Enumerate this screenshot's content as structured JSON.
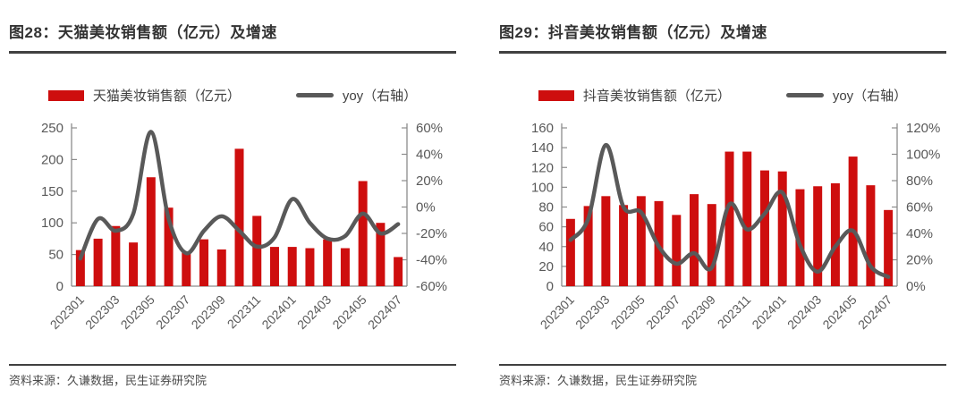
{
  "colors": {
    "bar_red": "#CE0E0E",
    "line_gray": "#595959",
    "title": "#333333",
    "rule": "#404040",
    "axis_label": "#595959",
    "axis_line": "#8C8C8C",
    "footer": "#4A4A4A"
  },
  "panels": [
    {
      "figure_title": "图28：天猫美妆销售额（亿元）及增速",
      "source": "资料来源：久谦数据，民生证券研究院"
    },
    {
      "figure_title": "图29：抖音美妆销售额（亿元）及增速",
      "source": "资料来源：久谦数据，民生证券研究院"
    }
  ],
  "chart_data": [
    {
      "type": "bar",
      "subtype": "bar+line-combo",
      "title": "图28：天猫美妆销售额（亿元）及增速",
      "categories": [
        "202301",
        "202302",
        "202303",
        "202304",
        "202305",
        "202306",
        "202307",
        "202308",
        "202309",
        "202310",
        "202311",
        "202312",
        "202401",
        "202402",
        "202403",
        "202404",
        "202405",
        "202406",
        "202407"
      ],
      "x_tick_labels": [
        "202301",
        "202303",
        "202305",
        "202307",
        "202309",
        "202311",
        "202401",
        "202403",
        "202405",
        "202407"
      ],
      "series": [
        {
          "name": "天猫美妆销售额（亿元）",
          "type": "bar",
          "axis": "left",
          "values": [
            57,
            75,
            95,
            69,
            172,
            124,
            53,
            74,
            58,
            217,
            111,
            62,
            62,
            60,
            74,
            60,
            166,
            100,
            46
          ]
        },
        {
          "name": "yoy（右轴）",
          "type": "line",
          "axis": "right",
          "values": [
            -39,
            -9,
            -18,
            -5,
            57,
            -9,
            -35,
            -18,
            -7,
            -18,
            -30,
            -23,
            6,
            -12,
            -24,
            -22,
            -5,
            -20,
            -13
          ]
        }
      ],
      "left_axis": {
        "min": 0,
        "max": 250,
        "step": 50,
        "tick_labels": [
          "0",
          "50",
          "100",
          "150",
          "200",
          "250"
        ]
      },
      "right_axis": {
        "min": -60,
        "max": 60,
        "step": 20,
        "tick_labels": [
          "-60%",
          "-40%",
          "-20%",
          "0%",
          "20%",
          "40%",
          "60%"
        ]
      },
      "legend_position": "top",
      "grid": false
    },
    {
      "type": "bar",
      "subtype": "bar+line-combo",
      "title": "图29：抖音美妆销售额（亿元）及增速",
      "categories": [
        "202301",
        "202302",
        "202303",
        "202304",
        "202305",
        "202306",
        "202307",
        "202308",
        "202309",
        "202310",
        "202311",
        "202312",
        "202401",
        "202402",
        "202403",
        "202404",
        "202405",
        "202406",
        "202407"
      ],
      "x_tick_labels": [
        "202301",
        "202303",
        "202305",
        "202307",
        "202309",
        "202311",
        "202401",
        "202403",
        "202405",
        "202407"
      ],
      "series": [
        {
          "name": "抖音美妆销售额（亿元）",
          "type": "bar",
          "axis": "left",
          "values": [
            68,
            81,
            91,
            82,
            91,
            86,
            72,
            93,
            83,
            136,
            136,
            117,
            116,
            98,
            101,
            104,
            131,
            102,
            77
          ]
        },
        {
          "name": "yoy（右轴）",
          "type": "line",
          "axis": "right",
          "values": [
            35,
            51,
            107,
            60,
            56,
            30,
            17,
            25,
            14,
            62,
            43,
            55,
            71,
            31,
            11,
            30,
            42,
            15,
            7
          ]
        }
      ],
      "left_axis": {
        "min": 0,
        "max": 160,
        "step": 20,
        "tick_labels": [
          "0",
          "20",
          "40",
          "60",
          "80",
          "100",
          "120",
          "140",
          "160"
        ]
      },
      "right_axis": {
        "min": 0,
        "max": 120,
        "step": 20,
        "tick_labels": [
          "0%",
          "20%",
          "40%",
          "60%",
          "80%",
          "100%",
          "120%"
        ]
      },
      "legend_position": "top",
      "grid": false
    }
  ]
}
